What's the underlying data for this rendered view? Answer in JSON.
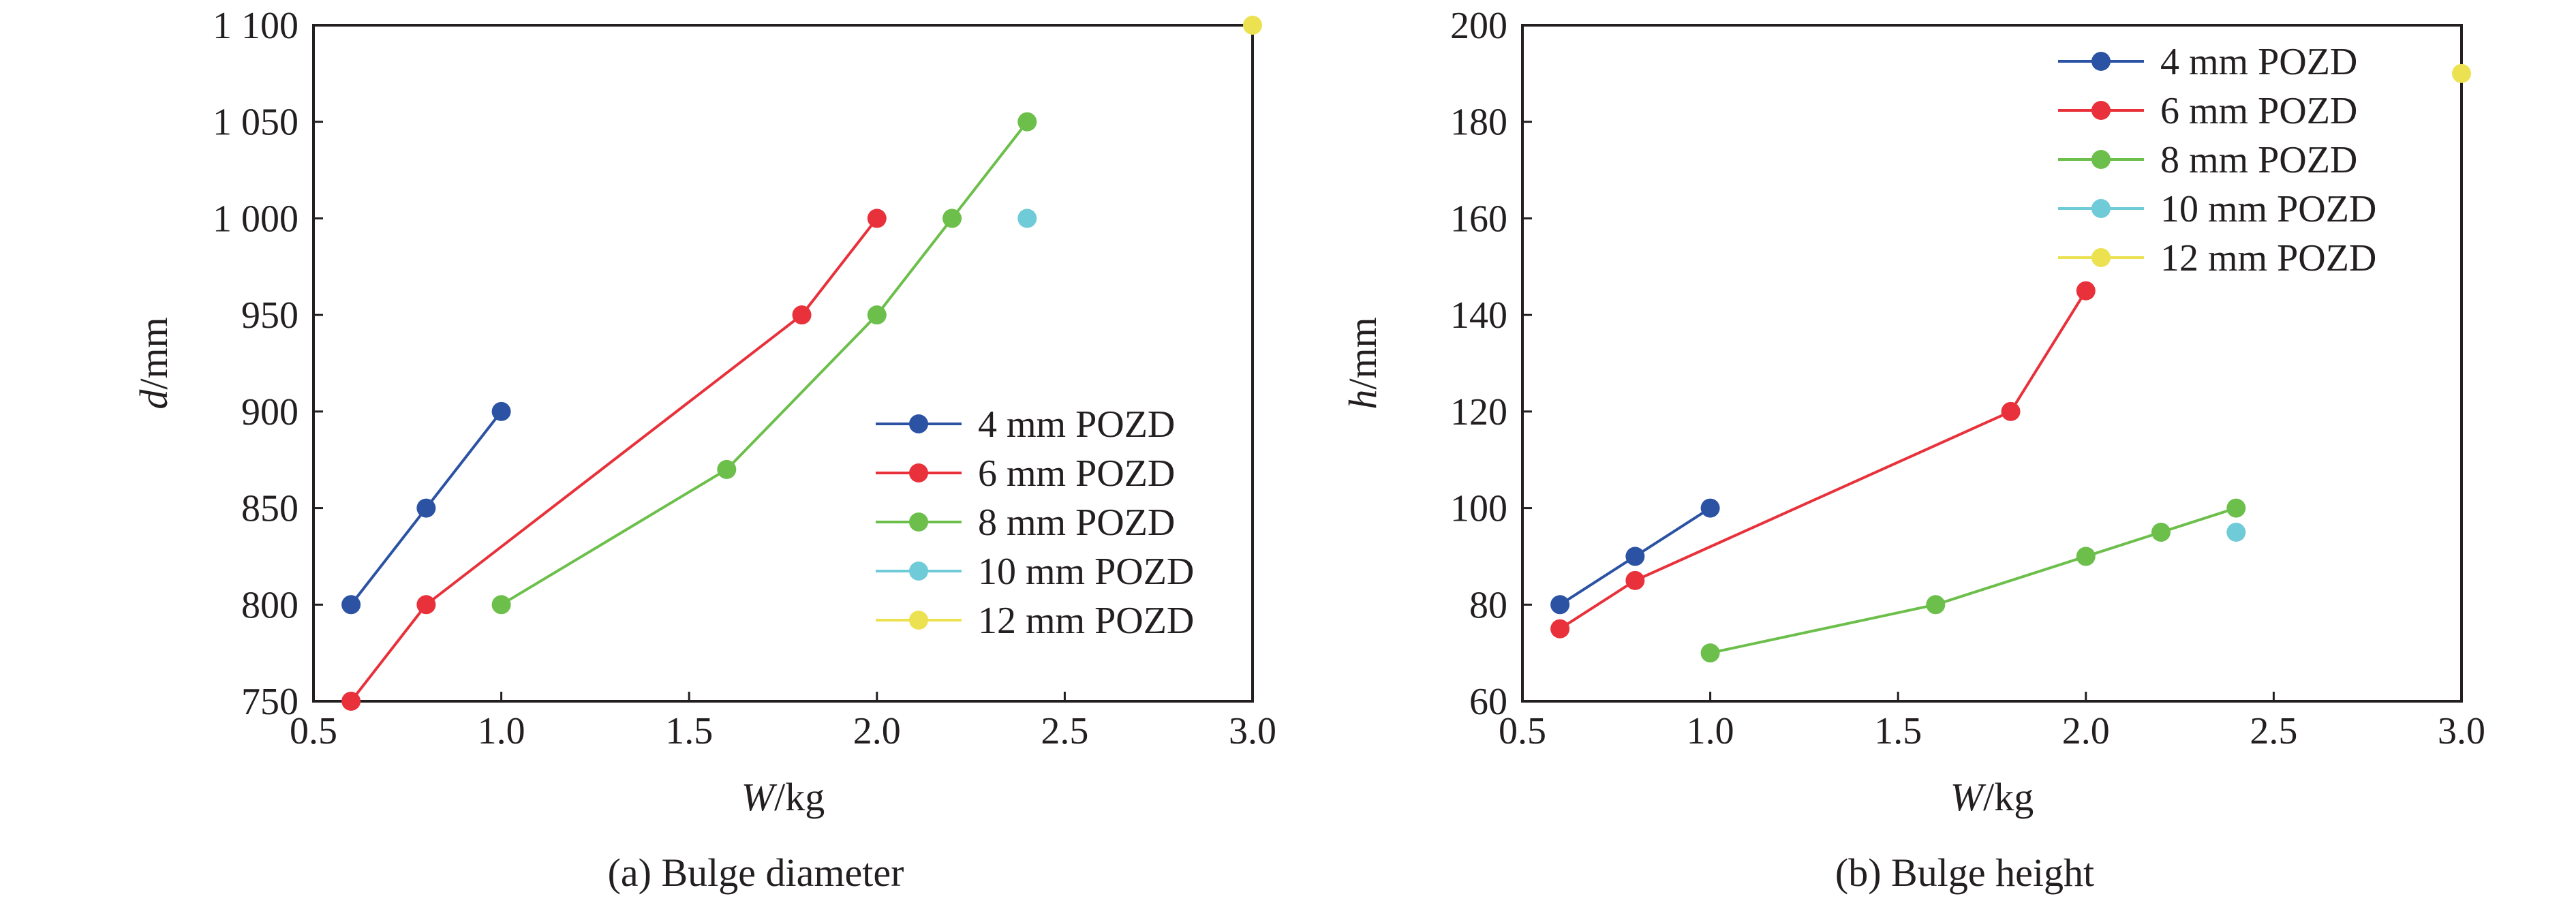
{
  "chart_data": [
    {
      "type": "line",
      "caption": "(a) Bulge diameter",
      "xlabel": {
        "var": "W",
        "unit": "/kg"
      },
      "ylabel": {
        "var": "d",
        "unit": "/mm"
      },
      "xlim": [
        0.5,
        3.0
      ],
      "ylim": [
        750,
        1100
      ],
      "xticks": [
        0.5,
        1.0,
        1.5,
        2.0,
        2.5,
        3.0
      ],
      "xtick_labels": [
        "0.5",
        "1.0",
        "1.5",
        "2.0",
        "2.5",
        "3.0"
      ],
      "yticks": [
        750,
        800,
        850,
        900,
        950,
        1000,
        1050,
        1100
      ],
      "ytick_labels": [
        "750",
        "800",
        "850",
        "900",
        "950",
        "1 000",
        "1 050",
        "1 100"
      ],
      "grid": false,
      "legend_position": "bottom-right",
      "series": [
        {
          "name": "4 mm POZD",
          "color": "#2b52a3",
          "x": [
            0.6,
            0.8,
            1.0
          ],
          "y": [
            800,
            850,
            900
          ]
        },
        {
          "name": "6 mm POZD",
          "color": "#e8313a",
          "x": [
            0.6,
            0.8,
            1.8,
            2.0
          ],
          "y": [
            750,
            800,
            950,
            1000
          ]
        },
        {
          "name": "8 mm POZD",
          "color": "#6cbf4b",
          "x": [
            1.0,
            1.6,
            2.0,
            2.2,
            2.4
          ],
          "y": [
            800,
            870,
            950,
            1000,
            1050
          ]
        },
        {
          "name": "10 mm POZD",
          "color": "#6fcbd7",
          "x": [
            2.4
          ],
          "y": [
            1000
          ]
        },
        {
          "name": "12 mm POZD",
          "color": "#ece251",
          "x": [
            3.0
          ],
          "y": [
            1100
          ]
        }
      ]
    },
    {
      "type": "line",
      "caption": "(b) Bulge height",
      "xlabel": {
        "var": "W",
        "unit": "/kg"
      },
      "ylabel": {
        "var": "h",
        "unit": "/mm"
      },
      "xlim": [
        0.5,
        3.0
      ],
      "ylim": [
        60,
        200
      ],
      "xticks": [
        0.5,
        1.0,
        1.5,
        2.0,
        2.5,
        3.0
      ],
      "xtick_labels": [
        "0.5",
        "1.0",
        "1.5",
        "2.0",
        "2.5",
        "3.0"
      ],
      "yticks": [
        60,
        80,
        100,
        120,
        140,
        160,
        180,
        200
      ],
      "ytick_labels": [
        "60",
        "80",
        "100",
        "120",
        "140",
        "160",
        "180",
        "200"
      ],
      "grid": false,
      "legend_position": "top-right",
      "series": [
        {
          "name": "4 mm POZD",
          "color": "#2b52a3",
          "x": [
            0.6,
            0.8,
            1.0
          ],
          "y": [
            80,
            90,
            100
          ]
        },
        {
          "name": "6 mm POZD",
          "color": "#e8313a",
          "x": [
            0.6,
            0.8,
            1.8,
            2.0
          ],
          "y": [
            75,
            85,
            120,
            145
          ]
        },
        {
          "name": "8 mm POZD",
          "color": "#6cbf4b",
          "x": [
            1.0,
            1.6,
            2.0,
            2.2,
            2.4
          ],
          "y": [
            70,
            80,
            90,
            95,
            100
          ]
        },
        {
          "name": "10 mm POZD",
          "color": "#6fcbd7",
          "x": [
            2.4
          ],
          "y": [
            95
          ]
        },
        {
          "name": "12 mm POZD",
          "color": "#ece251",
          "x": [
            3.0
          ],
          "y": [
            190
          ]
        }
      ]
    }
  ]
}
